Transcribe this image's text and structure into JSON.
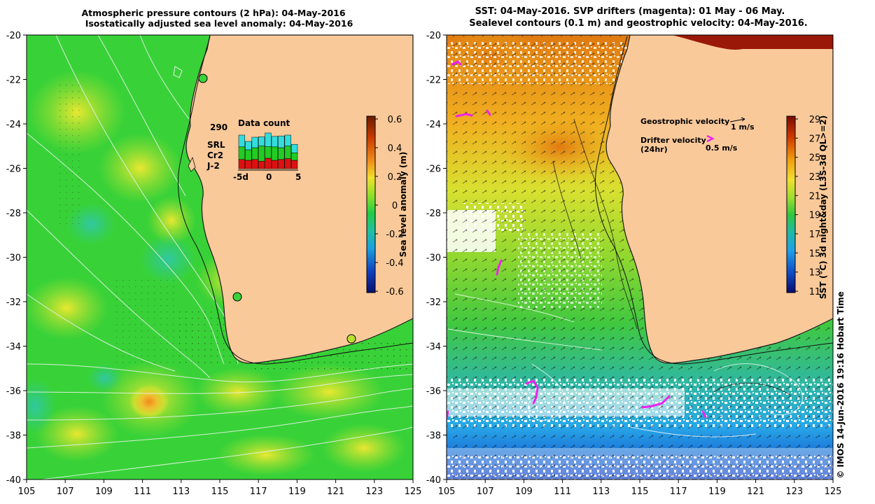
{
  "left_panel": {
    "title_line1": "Atmospheric pressure contours (2 hPa): 04-May-2016",
    "title_line2": "Isostatically adjusted sea level anomaly: 04-May-2016",
    "y_ticks": [
      "-20",
      "-22",
      "-24",
      "-26",
      "-28",
      "-30",
      "-32",
      "-34",
      "-36",
      "-38",
      "-40"
    ],
    "x_ticks": [
      "105",
      "107",
      "109",
      "111",
      "113",
      "115",
      "117",
      "119",
      "121",
      "123",
      "125"
    ],
    "colorbar": {
      "label": "Sea level anomaly (m)",
      "ticks": [
        "0.6",
        "0.4",
        "0.2",
        "0",
        "-0.2",
        "-0.4",
        "-0.6"
      ]
    },
    "data_count": {
      "title": "Data count",
      "total": "290",
      "legend": [
        {
          "name": "SRL",
          "color": "#33dddd"
        },
        {
          "name": "Cr2",
          "color": "#22cc22"
        },
        {
          "name": "J-2",
          "color": "#dd1111"
        }
      ],
      "axis_labels": [
        "-5d",
        "0",
        "5"
      ],
      "bars": [
        {
          "j2": 0.22,
          "cr2": 0.3,
          "srl": 0.28
        },
        {
          "j2": 0.2,
          "cr2": 0.25,
          "srl": 0.2
        },
        {
          "j2": 0.22,
          "cr2": 0.28,
          "srl": 0.25
        },
        {
          "j2": 0.18,
          "cr2": 0.36,
          "srl": 0.22
        },
        {
          "j2": 0.25,
          "cr2": 0.28,
          "srl": 0.32
        },
        {
          "j2": 0.2,
          "cr2": 0.32,
          "srl": 0.25
        },
        {
          "j2": 0.22,
          "cr2": 0.28,
          "srl": 0.28
        },
        {
          "j2": 0.24,
          "cr2": 0.3,
          "srl": 0.26
        },
        {
          "j2": 0.2,
          "cr2": 0.18,
          "srl": 0.2
        }
      ]
    }
  },
  "right_panel": {
    "title_line1": "SST: 04-May-2016. SVP drifters (magenta): 01 May - 06 May.",
    "title_line2": "Sealevel contours (0.1 m) and geostrophic velocity: 04-May-2016.",
    "y_ticks": [
      "-20",
      "-22",
      "-24",
      "-26",
      "-28",
      "-30",
      "-32",
      "-34",
      "-36",
      "-38",
      "-40"
    ],
    "x_ticks": [
      "105",
      "107",
      "109",
      "111",
      "113",
      "115",
      "117",
      "119",
      "121",
      "123",
      "125"
    ],
    "legend": {
      "geostrophic_label": "Geostrophic velocity",
      "geostrophic_scale": "1 m/s",
      "drifter_label_1": "Drifter velocity",
      "drifter_label_2": "(24hr)",
      "drifter_scale": "0.5 m/s"
    },
    "colorbar": {
      "label": "SST (°C) 3d night&day (L3S-3d QL>=2)",
      "ticks": [
        "29",
        "27",
        "25",
        "23",
        "21",
        "19",
        "17",
        "15",
        "13",
        "11"
      ]
    }
  },
  "credit": "© IMOS 14-Jun-2016 19:16 Hobart Time",
  "colors": {
    "land": "#f9c99a",
    "sla_base": "#38d238",
    "sst_mid": "#9ddb30",
    "drifter": "#ee22ee"
  }
}
